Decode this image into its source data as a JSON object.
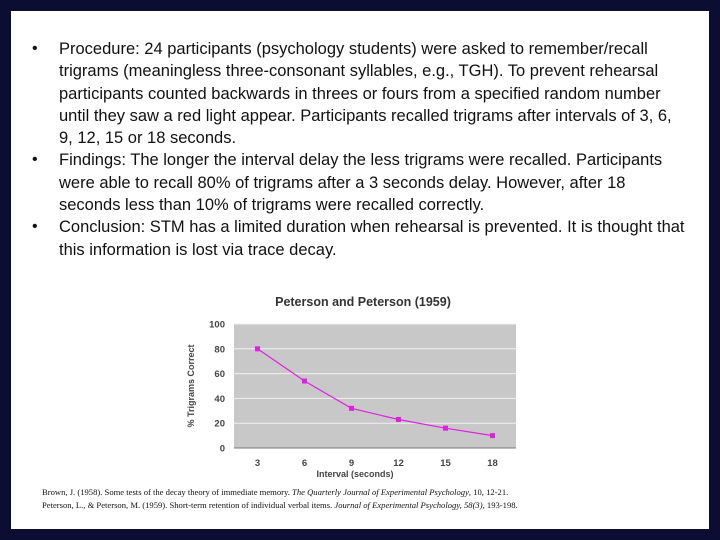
{
  "bullets": [
    {
      "term": "Procedure",
      "text": ": 24 participants (psychology students) were asked to remember/recall trigrams (meaningless three-consonant syllables, e.g., TGH). To prevent rehearsal participants counted backwards in threes or fours from a specified random number until they saw a red light appear. Participants recalled trigrams after intervals of 3, 6, 9, 12, 15 or 18 seconds."
    },
    {
      "term": "Findings",
      "text": ": The longer the interval delay the less trigrams were recalled. Participants were able to recall 80% of trigrams after a 3 seconds delay. However, after 18 seconds less than 10% of trigrams were recalled correctly."
    },
    {
      "term": "Conclusion",
      "text": ": STM has a limited duration when rehearsal is prevented. It is thought that this information is lost via trace decay."
    }
  ],
  "chart_data": {
    "type": "line",
    "title": "Peterson and Peterson (1959)",
    "xlabel": "Interval (seconds)",
    "ylabel": "% Trigrams Correct",
    "x": [
      3,
      6,
      9,
      12,
      15,
      18
    ],
    "y": [
      80,
      54,
      32,
      23,
      16,
      10
    ],
    "xlim": [
      1.5,
      19.5
    ],
    "ylim": [
      0,
      100
    ],
    "yticks": [
      0,
      20,
      40,
      60,
      80,
      100
    ],
    "grid": true,
    "series_color": "#e020e0",
    "plot_background": "#c8c8c8"
  },
  "references": [
    {
      "plain": "Brown, J. (1958). Some tests of the decay theory of immediate memory. ",
      "italic": "The Quarterly Journal of Experimental Psychology",
      "tail": ", 10, 12-21."
    },
    {
      "plain": "Peterson, L., & Peterson, M. (1959). Short-term retention of individual verbal items. ",
      "italic": "Journal of Experimental Psychology, 58(3)",
      "tail": ", 193-198."
    }
  ]
}
